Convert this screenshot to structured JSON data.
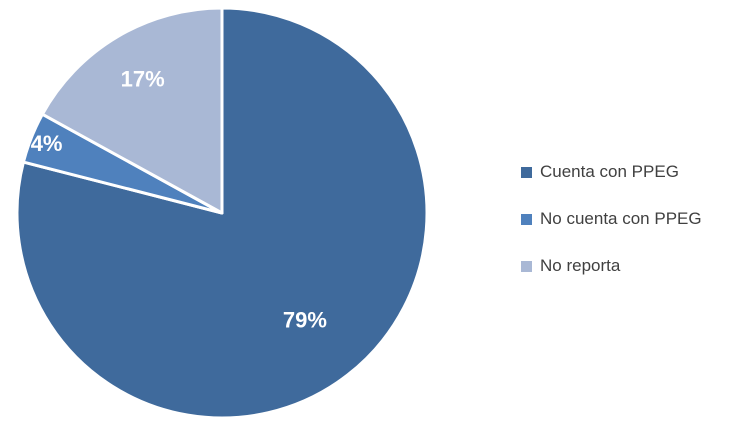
{
  "chart_data": {
    "type": "pie",
    "title": "",
    "categories": [
      "Cuenta con PPEG",
      "No cuenta con PPEG",
      "No reporta"
    ],
    "values": [
      79,
      4,
      17
    ],
    "data_labels": [
      "79%",
      "4%",
      "17%"
    ],
    "colors": [
      "#3f6a9c",
      "#4f81bd",
      "#a9b8d5"
    ],
    "legend_position": "right",
    "start_angle": "12 o'clock",
    "direction": "clockwise"
  }
}
